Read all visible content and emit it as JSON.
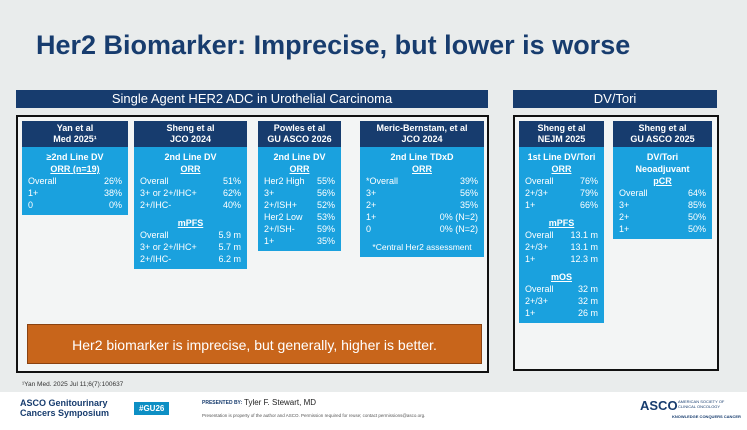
{
  "title": "Her2 Biomarker: Imprecise, but lower is worse",
  "left_panel": {
    "header": "Single Agent HER2 ADC in Urothelial Carcinoma"
  },
  "right_panel": {
    "header": "DV/Tori"
  },
  "columns": [
    {
      "head": [
        "Yan et al",
        "Med 2025¹"
      ],
      "sections": [
        {
          "type": "sub",
          "text": "≥2nd Line DV"
        },
        {
          "type": "sub",
          "text": "ORR (n=19)",
          "underline": true
        },
        {
          "type": "row",
          "k": "Overall",
          "v": "26%"
        },
        {
          "type": "row",
          "k": "1+",
          "v": "38%"
        },
        {
          "type": "row",
          "k": "0",
          "v": "0%"
        }
      ]
    },
    {
      "head": [
        "Sheng et al",
        "JCO 2024"
      ],
      "sections": [
        {
          "type": "sub",
          "text": "2nd Line DV"
        },
        {
          "type": "sub",
          "text": "ORR",
          "underline": true
        },
        {
          "type": "row",
          "k": "Overall",
          "v": "51%"
        },
        {
          "type": "row",
          "k": "3+ or 2+/IHC+",
          "v": "62%"
        },
        {
          "type": "row",
          "k": "2+/IHC-",
          "v": "40%"
        },
        {
          "type": "gap"
        },
        {
          "type": "sub",
          "text": "mPFS",
          "underline": true
        },
        {
          "type": "row",
          "k": "Overall",
          "v": "5.9 m"
        },
        {
          "type": "row",
          "k": "3+ or 2+/IHC+",
          "v": "5.7 m"
        },
        {
          "type": "row",
          "k": "2+/IHC-",
          "v": "6.2 m"
        }
      ]
    },
    {
      "head": [
        "Powles et al",
        "GU ASCO 2026"
      ],
      "sections": [
        {
          "type": "sub",
          "text": "2nd Line DV"
        },
        {
          "type": "sub",
          "text": "ORR",
          "underline": true
        },
        {
          "type": "row",
          "k": "Her2 High",
          "v": "55%"
        },
        {
          "type": "row",
          "k": "3+",
          "v": "56%"
        },
        {
          "type": "row",
          "k": "2+/ISH+",
          "v": "52%"
        },
        {
          "type": "row",
          "k": "Her2 Low",
          "v": "53%"
        },
        {
          "type": "row",
          "k": "2+/ISH-",
          "v": "59%"
        },
        {
          "type": "row",
          "k": "1+",
          "v": "35%"
        }
      ]
    },
    {
      "head": [
        "Meric-Bernstam, et al",
        "JCO 2024"
      ],
      "sections": [
        {
          "type": "sub",
          "text": "2nd Line TDxD"
        },
        {
          "type": "sub",
          "text": "ORR",
          "underline": true
        },
        {
          "type": "row",
          "k": "*Overall",
          "v": "39%"
        },
        {
          "type": "row",
          "k": "3+",
          "v": "56%"
        },
        {
          "type": "row",
          "k": "2+",
          "v": "35%"
        },
        {
          "type": "row",
          "k": "1+",
          "v": "0% (N=2)"
        },
        {
          "type": "row",
          "k": "0",
          "v": "0% (N=2)"
        },
        {
          "type": "gap"
        },
        {
          "type": "note",
          "text": "*Central Her2 assessment"
        }
      ]
    },
    {
      "head": [
        "Sheng et al",
        "NEJM 2025"
      ],
      "sections": [
        {
          "type": "sub",
          "text": "1st Line DV/Tori"
        },
        {
          "type": "sub",
          "text": "ORR",
          "underline": true
        },
        {
          "type": "row",
          "k": "Overall",
          "v": "76%"
        },
        {
          "type": "row",
          "k": "2+/3+",
          "v": "79%"
        },
        {
          "type": "row",
          "k": "1+",
          "v": "66%"
        },
        {
          "type": "gap"
        },
        {
          "type": "sub",
          "text": "mPFS",
          "underline": true
        },
        {
          "type": "row",
          "k": "Overall",
          "v": "13.1 m"
        },
        {
          "type": "row",
          "k": "2+/3+",
          "v": "13.1 m"
        },
        {
          "type": "row",
          "k": "1+",
          "v": "12.3 m"
        },
        {
          "type": "gap"
        },
        {
          "type": "sub",
          "text": "mOS",
          "underline": true
        },
        {
          "type": "row",
          "k": "Overall",
          "v": "32 m"
        },
        {
          "type": "row",
          "k": "2+/3+",
          "v": "32 m"
        },
        {
          "type": "row",
          "k": "1+",
          "v": "26 m"
        }
      ]
    },
    {
      "head": [
        "Sheng et al",
        "GU ASCO 2025"
      ],
      "sections": [
        {
          "type": "sub",
          "text": "DV/Tori"
        },
        {
          "type": "sub",
          "text": "Neoadjuvant"
        },
        {
          "type": "sub",
          "text": "pCR",
          "underline": true
        },
        {
          "type": "row",
          "k": "Overall",
          "v": "64%"
        },
        {
          "type": "row",
          "k": "3+",
          "v": "85%"
        },
        {
          "type": "row",
          "k": "2+",
          "v": "50%"
        },
        {
          "type": "row",
          "k": "1+",
          "v": "50%"
        }
      ]
    }
  ],
  "callout": "Her2 biomarker is imprecise, but generally, higher is better.",
  "footnote": "¹Yan Med. 2025 Jul 11;6(7):100637",
  "footer": {
    "meeting_line1": "ASCO Genitourinary",
    "meeting_line2": "Cancers Symposium",
    "hashtag": "#GU26",
    "presented_by": "PRESENTED BY:",
    "presenter": "Tyler F. Stewart, MD",
    "disclaimer": "Presentation is property of the author and ASCO. Permission required for reuse; contact permissions@asco.org.",
    "asco": "ASCO",
    "asco_sub1": "AMERICAN SOCIETY OF",
    "asco_sub2": "CLINICAL ONCOLOGY",
    "asco_tag": "KNOWLEDGE CONQUERS CANCER"
  },
  "colors": {
    "navy": "#173c6e",
    "cyan": "#1aa1de",
    "orange": "#c8651b"
  }
}
